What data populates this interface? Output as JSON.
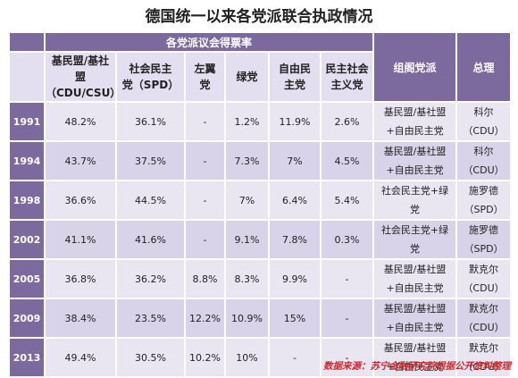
{
  "title": "德国统一以来各党派联合执政情况",
  "header": {
    "vote_share_group": "各党派议会得票率",
    "cabinet": "组阁党派",
    "chancellor": "总理",
    "parties": [
      {
        "line1": "基民盟/基社",
        "line2": "盟（CDU/CSU）"
      },
      {
        "line1": "社会民主",
        "line2": "党（SPD）"
      },
      {
        "line1": "左翼",
        "line2": "党"
      },
      {
        "line1": "绿党",
        "line2": ""
      },
      {
        "line1": "自由民",
        "line2": "主党"
      },
      {
        "line1": "民主社会",
        "line2": "主义党"
      }
    ]
  },
  "rows": [
    {
      "year": "1991",
      "values": [
        "48.2%",
        "36.1%",
        "-",
        "1.2%",
        "11.9%",
        "2.6%"
      ],
      "cabinet_line1": "基民盟/基社盟",
      "cabinet_line2": "+自由民主党",
      "pm_line1": "科尔",
      "pm_line2": "（CDU）"
    },
    {
      "year": "1994",
      "values": [
        "43.7%",
        "37.5%",
        "-",
        "7.3%",
        "7%",
        "4.5%"
      ],
      "cabinet_line1": "基民盟/基社盟",
      "cabinet_line2": "+自由民主党",
      "pm_line1": "科尔",
      "pm_line2": "（CDU）"
    },
    {
      "year": "1998",
      "values": [
        "36.6%",
        "44.5%",
        "-",
        "7%",
        "6.4%",
        "5.4%"
      ],
      "cabinet_line1": "社会民主党+绿",
      "cabinet_line2": "党",
      "pm_line1": "施罗德",
      "pm_line2": "（SPD）"
    },
    {
      "year": "2002",
      "values": [
        "41.1%",
        "41.6%",
        "-",
        "9.1%",
        "7.8%",
        "0.3%"
      ],
      "cabinet_line1": "社会民主党+绿",
      "cabinet_line2": "党",
      "pm_line1": "施罗德",
      "pm_line2": "（SPD）"
    },
    {
      "year": "2005",
      "values": [
        "36.8%",
        "36.2%",
        "8.8%",
        "8.3%",
        "9.9%",
        "-"
      ],
      "cabinet_line1": "基民盟/基社盟",
      "cabinet_line2": "+自由民主党",
      "pm_line1": "默克尔",
      "pm_line2": "（CDU）"
    },
    {
      "year": "2009",
      "values": [
        "38.4%",
        "23.5%",
        "12.2%",
        "10.9%",
        "15%",
        "-"
      ],
      "cabinet_line1": "基民盟/基社盟",
      "cabinet_line2": "+自由民主党",
      "pm_line1": "默克尔",
      "pm_line2": "（CDU）"
    },
    {
      "year": "2013",
      "values": [
        "49.4%",
        "30.5%",
        "10.2%",
        "10%",
        "-",
        "-"
      ],
      "cabinet_line1": "基民盟/基社盟",
      "cabinet_line2": "+自由民主党",
      "pm_line1": "默克尔",
      "pm_line2": "（CDU）"
    }
  ],
  "source": "数据来源：苏宁金融研究院根据公开资料整理",
  "colors": {
    "header_purple": "#7c6a9e",
    "source_red": "#d0282f"
  }
}
